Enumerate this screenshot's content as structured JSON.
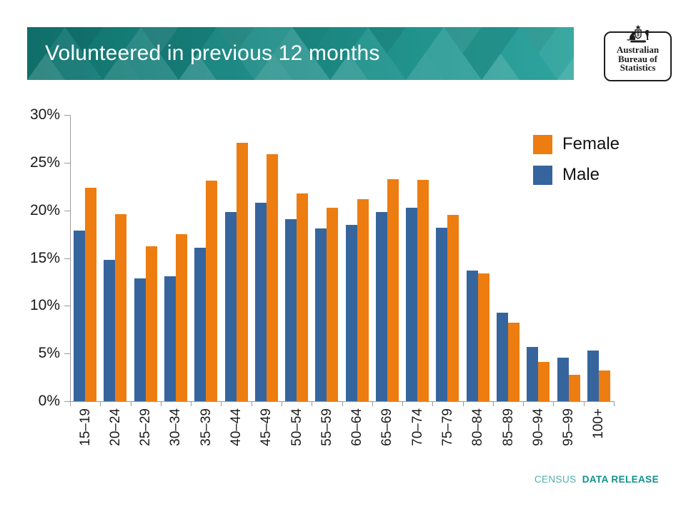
{
  "header": {
    "title": "Volunteered in previous 12 months",
    "banner_color_left": "#11736F",
    "banner_color_right": "#2AA29B",
    "logo": {
      "lines": [
        "Australian",
        "Bureau of",
        "Statistics"
      ]
    }
  },
  "footer": {
    "prefix": "CENSUS",
    "label": "DATA RELEASE",
    "prefix_color": "#4FB0AC",
    "label_color": "#0E918C"
  },
  "chart_data": {
    "type": "bar",
    "grouping": "grouped",
    "title": "Volunteered in previous 12 months",
    "xlabel": "",
    "ylabel": "",
    "categories": [
      "15–19",
      "20–24",
      "25–29",
      "30–34",
      "35–39",
      "40–44",
      "45–49",
      "50–54",
      "55–59",
      "60–64",
      "65–69",
      "70–74",
      "75–79",
      "80–84",
      "85–89",
      "90–94",
      "95–99",
      "100+"
    ],
    "series": [
      {
        "name": "Male",
        "color": "#36659E",
        "values": [
          17.9,
          14.8,
          12.9,
          13.1,
          16.1,
          19.8,
          20.8,
          19.1,
          18.1,
          18.5,
          19.8,
          20.3,
          18.2,
          13.7,
          9.3,
          5.7,
          4.6,
          5.3
        ]
      },
      {
        "name": "Female",
        "color": "#ED7D11",
        "values": [
          22.4,
          19.6,
          16.2,
          17.5,
          23.1,
          27.1,
          25.9,
          21.8,
          20.3,
          21.2,
          23.3,
          23.2,
          19.5,
          13.4,
          8.2,
          4.1,
          2.8,
          3.2
        ]
      }
    ],
    "legend": {
      "position": "top-right",
      "order": [
        "Female",
        "Male"
      ]
    },
    "ylim": [
      0,
      30
    ],
    "yticks": [
      "0%",
      "5%",
      "10%",
      "15%",
      "20%",
      "25%",
      "30%"
    ],
    "ytick_step": 5,
    "grid": false,
    "axis_color": "#9b9b9b",
    "text_color": "#1a1a1a"
  }
}
